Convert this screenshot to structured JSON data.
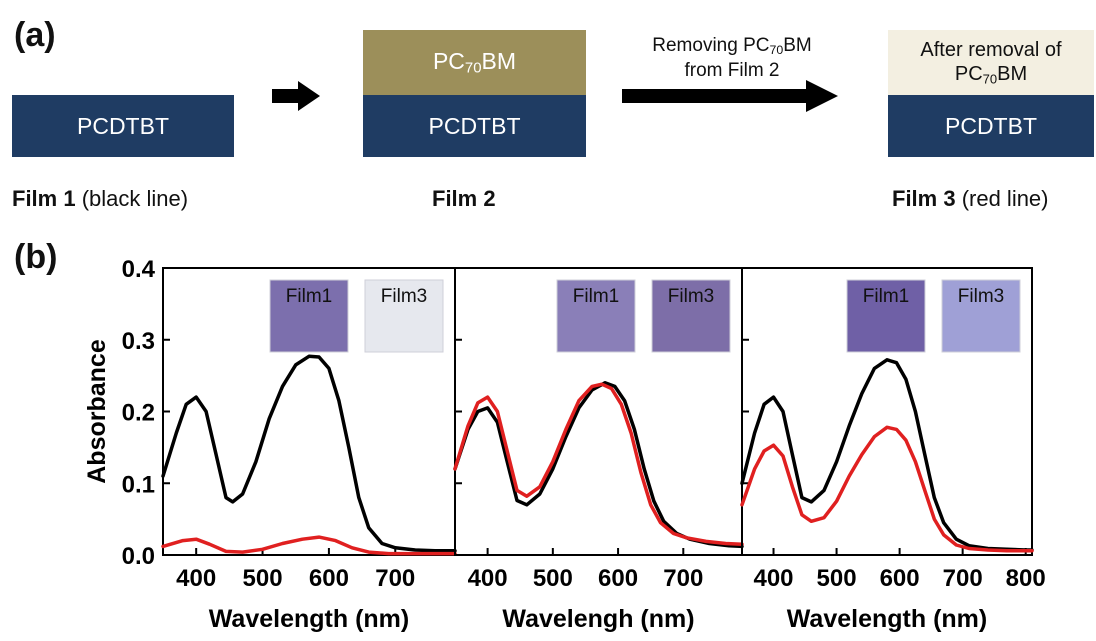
{
  "panel_a": {
    "label": "(a)",
    "film1_layer": "PCDTBT",
    "film2_top_main": "PC",
    "film2_top_sub": "70",
    "film2_top_end": "BM",
    "film2_bottom": "PCDTBT",
    "film3_top_line1": "After removal of",
    "film3_top_line2_main": "PC",
    "film3_top_line2_sub": "70",
    "film3_top_line2_end": "BM",
    "film3_bottom": "PCDTBT",
    "arrow_line1_main": "Removing PC",
    "arrow_line1_sub": "70",
    "arrow_line1_end": "BM",
    "arrow_line2": "from Film 2",
    "caption1_bold": "Film 1",
    "caption1_rest": " (black line)",
    "caption2_bold": "Film 2",
    "caption3_bold": "Film 3",
    "caption3_rest": " (red line)"
  },
  "panel_b": {
    "label": "(b)"
  },
  "colors": {
    "navy": "#1f3c63",
    "olive": "#9c8f5a",
    "cream": "#f3efe1",
    "film1_series": "#000000",
    "film3_series": "#e02020"
  },
  "chart_data": [
    {
      "type": "line",
      "ylabel": "Absorbance",
      "xlabel": "Wavelength (nm)",
      "xlim": [
        350,
        790
      ],
      "ylim": [
        0,
        0.4
      ],
      "xticks": [
        400,
        500,
        600,
        700
      ],
      "yticks": [
        "0.0",
        "0.1",
        "0.2",
        "0.3",
        "0.4"
      ],
      "insets": [
        {
          "label": "Film1",
          "color": "#7c6fad"
        },
        {
          "label": "Film3",
          "color": "#e6e8ee"
        }
      ],
      "series": [
        {
          "color": "#000000",
          "x": [
            350,
            370,
            385,
            400,
            415,
            430,
            445,
            455,
            470,
            490,
            510,
            530,
            550,
            570,
            585,
            600,
            615,
            630,
            645,
            660,
            680,
            700,
            730,
            760,
            790
          ],
          "y": [
            0.11,
            0.17,
            0.21,
            0.22,
            0.2,
            0.14,
            0.08,
            0.074,
            0.085,
            0.13,
            0.19,
            0.235,
            0.265,
            0.277,
            0.276,
            0.26,
            0.215,
            0.15,
            0.08,
            0.038,
            0.016,
            0.01,
            0.007,
            0.006,
            0.006
          ]
        },
        {
          "color": "#e02020",
          "x": [
            350,
            380,
            400,
            420,
            445,
            470,
            500,
            530,
            560,
            585,
            610,
            635,
            660,
            690,
            720,
            760,
            790
          ],
          "y": [
            0.012,
            0.02,
            0.022,
            0.015,
            0.005,
            0.004,
            0.008,
            0.016,
            0.022,
            0.025,
            0.02,
            0.01,
            0.004,
            0.002,
            0.002,
            0.002,
            0.002
          ]
        }
      ]
    },
    {
      "type": "line",
      "xlabel": "Wavelengh (nm)",
      "xlim": [
        350,
        790
      ],
      "ylim": [
        0,
        0.4
      ],
      "xticks": [
        400,
        500,
        600,
        700
      ],
      "insets": [
        {
          "label": "Film1",
          "color": "#8a7fb8"
        },
        {
          "label": "Film3",
          "color": "#7d6ea8"
        }
      ],
      "series": [
        {
          "color": "#000000",
          "x": [
            350,
            370,
            385,
            400,
            415,
            430,
            445,
            460,
            480,
            500,
            520,
            540,
            560,
            580,
            595,
            610,
            625,
            640,
            655,
            670,
            690,
            710,
            740,
            770,
            790
          ],
          "y": [
            0.12,
            0.175,
            0.2,
            0.205,
            0.185,
            0.13,
            0.076,
            0.07,
            0.085,
            0.12,
            0.165,
            0.205,
            0.23,
            0.24,
            0.235,
            0.215,
            0.175,
            0.12,
            0.075,
            0.047,
            0.03,
            0.022,
            0.016,
            0.013,
            0.012
          ]
        },
        {
          "color": "#e02020",
          "x": [
            350,
            370,
            385,
            400,
            415,
            430,
            445,
            460,
            480,
            500,
            520,
            540,
            560,
            575,
            590,
            605,
            620,
            635,
            650,
            665,
            685,
            705,
            735,
            765,
            790
          ],
          "y": [
            0.12,
            0.18,
            0.212,
            0.22,
            0.2,
            0.145,
            0.09,
            0.082,
            0.095,
            0.13,
            0.175,
            0.215,
            0.235,
            0.238,
            0.232,
            0.21,
            0.17,
            0.115,
            0.07,
            0.045,
            0.03,
            0.024,
            0.019,
            0.016,
            0.015
          ]
        }
      ]
    },
    {
      "type": "line",
      "xlabel": "Wavelength (nm)",
      "xlim": [
        350,
        810
      ],
      "ylim": [
        0,
        0.4
      ],
      "xticks": [
        400,
        500,
        600,
        700,
        800
      ],
      "insets": [
        {
          "label": "Film1",
          "color": "#6f60a6"
        },
        {
          "label": "Film3",
          "color": "#9fa0d6"
        }
      ],
      "series": [
        {
          "color": "#000000",
          "x": [
            350,
            370,
            385,
            400,
            415,
            430,
            445,
            460,
            480,
            500,
            520,
            540,
            560,
            580,
            595,
            610,
            625,
            640,
            655,
            670,
            690,
            710,
            740,
            770,
            800,
            810
          ],
          "y": [
            0.1,
            0.17,
            0.21,
            0.22,
            0.2,
            0.14,
            0.08,
            0.074,
            0.09,
            0.13,
            0.18,
            0.225,
            0.26,
            0.272,
            0.268,
            0.245,
            0.2,
            0.14,
            0.08,
            0.045,
            0.022,
            0.013,
            0.009,
            0.008,
            0.007,
            0.007
          ]
        },
        {
          "color": "#e02020",
          "x": [
            350,
            370,
            385,
            400,
            415,
            430,
            445,
            460,
            480,
            500,
            520,
            540,
            560,
            580,
            595,
            610,
            625,
            640,
            655,
            670,
            690,
            710,
            740,
            770,
            800,
            810
          ],
          "y": [
            0.07,
            0.12,
            0.145,
            0.153,
            0.138,
            0.095,
            0.056,
            0.047,
            0.052,
            0.075,
            0.11,
            0.14,
            0.165,
            0.178,
            0.175,
            0.16,
            0.13,
            0.09,
            0.05,
            0.028,
            0.014,
            0.009,
            0.007,
            0.006,
            0.006,
            0.006
          ]
        }
      ]
    }
  ]
}
